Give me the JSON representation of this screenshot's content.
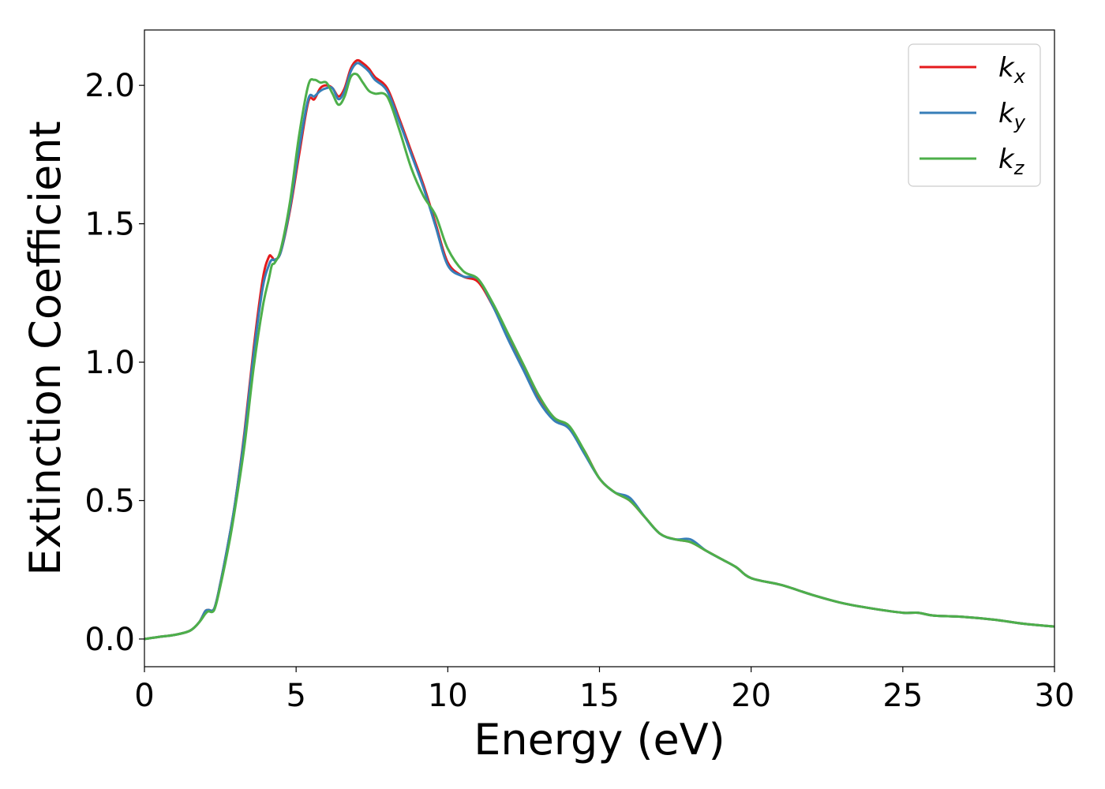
{
  "chart_data": {
    "type": "line",
    "xlabel": "Energy (eV)",
    "ylabel": "Extinction Coefficient",
    "xlim": [
      0,
      30
    ],
    "ylim": [
      -0.1,
      2.2
    ],
    "xticks": [
      0,
      5,
      10,
      15,
      20,
      25,
      30
    ],
    "yticks": [
      0.0,
      0.5,
      1.0,
      1.5,
      2.0
    ],
    "xtick_labels": [
      "0",
      "5",
      "10",
      "15",
      "20",
      "25",
      "30"
    ],
    "ytick_labels": [
      "0.0",
      "0.5",
      "1.0",
      "1.5",
      "2.0"
    ],
    "grid": false,
    "legend_position": "top-right",
    "series": [
      {
        "name": "kx",
        "legend_base": "k",
        "legend_sub": "x",
        "color": "#e41a1c",
        "x": [
          0,
          0.5,
          1.0,
          1.5,
          1.8,
          2.0,
          2.1,
          2.3,
          2.5,
          2.8,
          3.0,
          3.3,
          3.6,
          3.9,
          4.1,
          4.2,
          4.3,
          4.5,
          4.8,
          5.1,
          5.4,
          5.6,
          5.8,
          6.0,
          6.2,
          6.4,
          6.6,
          6.8,
          7.0,
          7.2,
          7.4,
          7.6,
          8.0,
          8.4,
          8.8,
          9.2,
          9.6,
          10.0,
          10.5,
          11.0,
          11.5,
          12.0,
          12.5,
          13.0,
          13.5,
          14.0,
          14.5,
          15.0,
          15.5,
          16.0,
          16.5,
          17.0,
          17.5,
          18.0,
          18.5,
          19.0,
          19.5,
          20.0,
          21.0,
          22.0,
          23.0,
          24.0,
          25.0,
          25.5,
          26.0,
          27.0,
          28.0,
          29.0,
          30.0
        ],
        "values": [
          0,
          0.008,
          0.015,
          0.03,
          0.06,
          0.1,
          0.105,
          0.11,
          0.2,
          0.37,
          0.5,
          0.75,
          1.05,
          1.3,
          1.38,
          1.38,
          1.37,
          1.4,
          1.55,
          1.75,
          1.94,
          1.95,
          1.99,
          2.0,
          1.99,
          1.96,
          1.99,
          2.06,
          2.09,
          2.08,
          2.06,
          2.03,
          1.99,
          1.88,
          1.76,
          1.64,
          1.5,
          1.36,
          1.31,
          1.29,
          1.2,
          1.09,
          0.98,
          0.87,
          0.8,
          0.76,
          0.68,
          0.58,
          0.53,
          0.5,
          0.44,
          0.38,
          0.36,
          0.35,
          0.32,
          0.29,
          0.26,
          0.22,
          0.195,
          0.16,
          0.13,
          0.11,
          0.095,
          0.095,
          0.085,
          0.08,
          0.07,
          0.055,
          0.045
        ]
      },
      {
        "name": "ky",
        "legend_base": "k",
        "legend_sub": "y",
        "color": "#377eb8",
        "x": [
          0,
          0.5,
          1.0,
          1.5,
          1.8,
          2.0,
          2.1,
          2.3,
          2.5,
          2.8,
          3.0,
          3.3,
          3.6,
          3.9,
          4.1,
          4.2,
          4.3,
          4.5,
          4.8,
          5.1,
          5.4,
          5.6,
          5.8,
          6.0,
          6.2,
          6.4,
          6.6,
          6.8,
          7.0,
          7.2,
          7.4,
          7.6,
          8.0,
          8.4,
          8.8,
          9.2,
          9.6,
          10.0,
          10.5,
          11.0,
          11.5,
          12.0,
          12.5,
          13.0,
          13.5,
          14.0,
          14.5,
          15.0,
          15.5,
          16.0,
          16.5,
          17.0,
          17.5,
          18.0,
          18.5,
          19.0,
          19.5,
          20.0,
          21.0,
          22.0,
          23.0,
          24.0,
          25.0,
          25.5,
          26.0,
          27.0,
          28.0,
          29.0,
          30.0
        ],
        "values": [
          0,
          0.008,
          0.015,
          0.03,
          0.06,
          0.1,
          0.105,
          0.11,
          0.2,
          0.37,
          0.5,
          0.74,
          1.03,
          1.27,
          1.35,
          1.37,
          1.37,
          1.4,
          1.56,
          1.77,
          1.95,
          1.96,
          1.98,
          1.99,
          1.99,
          1.95,
          1.98,
          2.05,
          2.08,
          2.07,
          2.05,
          2.02,
          1.98,
          1.87,
          1.75,
          1.63,
          1.49,
          1.35,
          1.31,
          1.3,
          1.2,
          1.08,
          0.97,
          0.86,
          0.79,
          0.76,
          0.67,
          0.58,
          0.53,
          0.51,
          0.44,
          0.38,
          0.36,
          0.36,
          0.32,
          0.29,
          0.26,
          0.22,
          0.195,
          0.16,
          0.13,
          0.11,
          0.095,
          0.095,
          0.085,
          0.08,
          0.07,
          0.055,
          0.045
        ]
      },
      {
        "name": "kz",
        "legend_base": "k",
        "legend_sub": "z",
        "color": "#4daf4a",
        "x": [
          0,
          0.5,
          1.0,
          1.5,
          1.8,
          2.0,
          2.1,
          2.3,
          2.5,
          2.8,
          3.0,
          3.3,
          3.6,
          3.9,
          4.1,
          4.2,
          4.3,
          4.5,
          4.8,
          5.1,
          5.4,
          5.6,
          5.8,
          6.0,
          6.2,
          6.4,
          6.6,
          6.8,
          7.0,
          7.2,
          7.4,
          7.6,
          8.0,
          8.4,
          8.8,
          9.2,
          9.6,
          10.0,
          10.5,
          11.0,
          11.5,
          12.0,
          12.5,
          13.0,
          13.5,
          14.0,
          14.5,
          15.0,
          15.5,
          16.0,
          16.5,
          17.0,
          17.5,
          18.0,
          18.5,
          19.0,
          19.5,
          20.0,
          21.0,
          22.0,
          23.0,
          24.0,
          25.0,
          25.5,
          26.0,
          27.0,
          28.0,
          29.0,
          30.0
        ],
        "values": [
          0,
          0.008,
          0.015,
          0.03,
          0.06,
          0.09,
          0.1,
          0.105,
          0.19,
          0.35,
          0.48,
          0.7,
          0.98,
          1.2,
          1.3,
          1.35,
          1.36,
          1.41,
          1.58,
          1.82,
          2.0,
          2.02,
          2.01,
          2.01,
          1.97,
          1.93,
          1.96,
          2.03,
          2.04,
          2.01,
          1.98,
          1.97,
          1.96,
          1.84,
          1.7,
          1.6,
          1.53,
          1.41,
          1.33,
          1.3,
          1.21,
          1.1,
          0.99,
          0.88,
          0.8,
          0.77,
          0.68,
          0.58,
          0.53,
          0.5,
          0.44,
          0.38,
          0.36,
          0.35,
          0.32,
          0.29,
          0.26,
          0.22,
          0.195,
          0.16,
          0.13,
          0.11,
          0.095,
          0.095,
          0.085,
          0.08,
          0.07,
          0.055,
          0.045
        ]
      }
    ]
  }
}
